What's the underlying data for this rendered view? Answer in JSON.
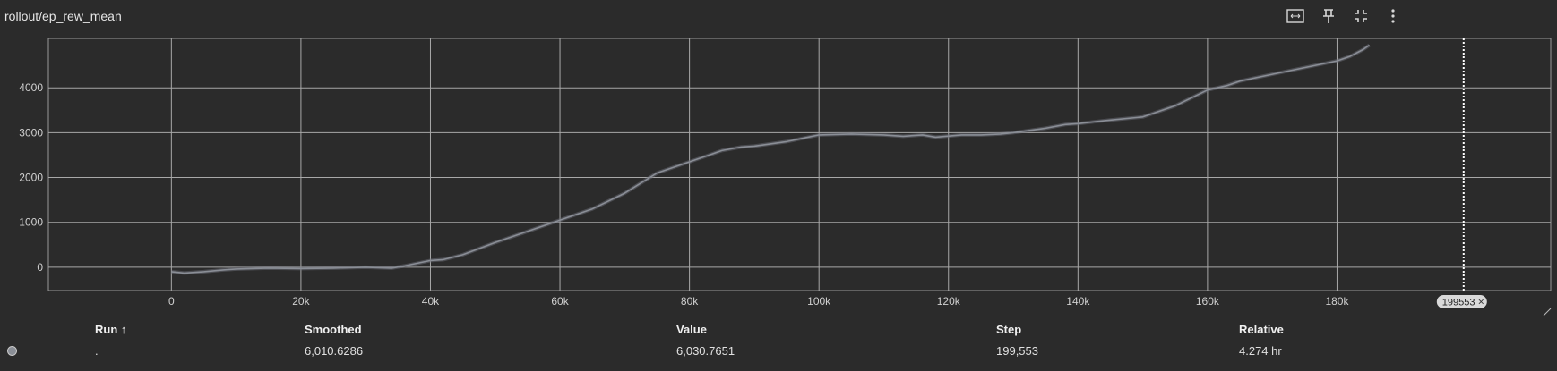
{
  "card": {
    "title": "rollout/ep_rew_mean"
  },
  "toolbar": {
    "icons": [
      "fit-domain-icon",
      "pin-icon",
      "collapse-icon",
      "more-vert-icon"
    ]
  },
  "chart_data": {
    "type": "line",
    "xlim": [
      -19000,
      213000
    ],
    "ylim": [
      -520,
      5100
    ],
    "x_ticks": [
      0,
      20000,
      40000,
      60000,
      80000,
      100000,
      120000,
      140000,
      160000,
      180000
    ],
    "x_tick_labels": [
      "0",
      "20k",
      "40k",
      "60k",
      "80k",
      "100k",
      "120k",
      "140k",
      "160k",
      "180k"
    ],
    "y_ticks": [
      0,
      1000,
      2000,
      3000,
      4000
    ],
    "y_tick_labels": [
      "0",
      "1000",
      "2000",
      "3000",
      "4000"
    ],
    "grid": true,
    "series": [
      {
        "color": "#8a8e96",
        "x": [
          0,
          2000,
          5000,
          8000,
          10000,
          15000,
          20000,
          25000,
          30000,
          34000,
          36000,
          38000,
          40000,
          42000,
          45000,
          50000,
          55000,
          60000,
          65000,
          70000,
          75000,
          80000,
          83000,
          85000,
          88000,
          90000,
          95000,
          100000,
          105000,
          110000,
          113000,
          116000,
          118000,
          122000,
          125000,
          128000,
          130000,
          135000,
          138000,
          140000,
          143000,
          145000,
          150000,
          155000,
          160000,
          163000,
          165000,
          170000,
          175000,
          180000,
          182000,
          184000,
          185000
        ],
        "y": [
          -100,
          -130,
          -100,
          -60,
          -40,
          -20,
          -30,
          -20,
          0,
          -20,
          30,
          90,
          150,
          170,
          280,
          550,
          800,
          1050,
          1300,
          1650,
          2100,
          2350,
          2500,
          2600,
          2680,
          2700,
          2800,
          2950,
          2970,
          2950,
          2920,
          2950,
          2900,
          2950,
          2950,
          2970,
          3000,
          3100,
          3180,
          3200,
          3250,
          3280,
          3350,
          3600,
          3950,
          4050,
          4150,
          4300,
          4450,
          4600,
          4700,
          4850,
          4950
        ]
      }
    ],
    "cursor": {
      "step_label": "199553",
      "close_glyph": "×"
    }
  },
  "table": {
    "headers": {
      "run": "Run ↑",
      "smoothed": "Smoothed",
      "value": "Value",
      "step": "Step",
      "relative": "Relative"
    },
    "rows": [
      {
        "run": ".",
        "smoothed": "6,010.6286",
        "value": "6,030.7651",
        "step": "199,553",
        "relative": "4.274 hr",
        "color": "#8a8e96"
      }
    ]
  }
}
